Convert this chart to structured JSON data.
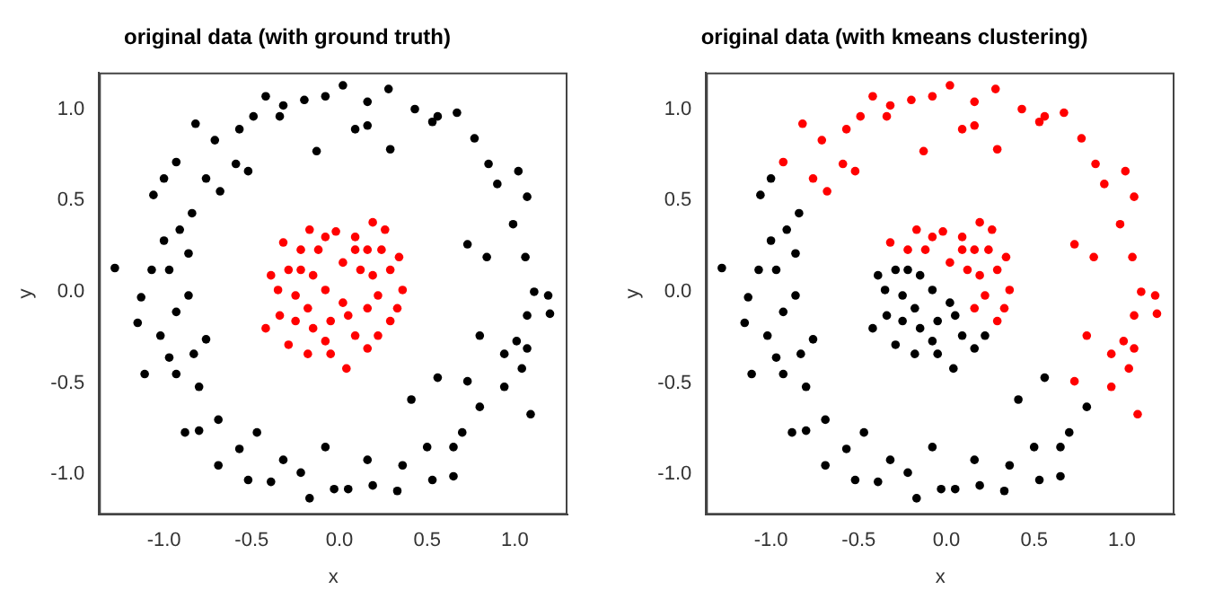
{
  "chart_data": [
    {
      "type": "scatter",
      "title": "original data (with ground truth)",
      "xlabel": "x",
      "ylabel": "y",
      "xlim": [
        -1.37,
        1.3
      ],
      "ylim": [
        -1.22,
        1.2
      ],
      "xticks": [
        {
          "value": -1,
          "label": "-1.0"
        },
        {
          "value": -0.5,
          "label": "-0.5"
        },
        {
          "value": 0,
          "label": "0.0"
        },
        {
          "value": 0.5,
          "label": "0.5"
        },
        {
          "value": 1,
          "label": "1.0"
        }
      ],
      "yticks": [
        {
          "value": -1,
          "label": "-1.0"
        },
        {
          "value": -0.5,
          "label": "-0.5"
        },
        {
          "value": 0,
          "label": "0.0"
        },
        {
          "value": 0.5,
          "label": "0.5"
        },
        {
          "value": 1,
          "label": "1.0"
        }
      ],
      "grid": false,
      "legend": false,
      "marker": "circle",
      "series": [
        {
          "color": "#000000",
          "x": [
            -1.28,
            -1.15,
            -1.11,
            -1.13,
            -1.07,
            -1.06,
            -1.0,
            -0.93,
            -0.82,
            -0.71,
            -0.76,
            -0.68,
            -0.57,
            -0.49,
            -0.42,
            -0.32,
            -0.2,
            -0.08,
            0.02,
            0.16,
            0.28,
            0.43,
            0.53,
            0.67,
            0.77,
            0.85,
            0.9,
            1.02,
            1.07,
            0.99,
            1.06,
            1.11,
            1.19,
            1.2,
            1.07,
            1.01,
            1.07,
            0.94,
            1.04,
            1.09,
            0.94,
            0.8,
            0.73,
            0.7,
            0.65,
            0.65,
            0.5,
            0.53,
            0.36,
            0.33,
            0.19,
            0.16,
            0.05,
            -0.03,
            -0.08,
            -0.17,
            -0.22,
            -0.32,
            -0.39,
            -0.52,
            -0.47,
            -0.57,
            -0.69,
            -0.69,
            -0.8,
            -0.88,
            -0.8,
            -0.93,
            -0.97,
            -0.83,
            -0.76,
            -1.02,
            -0.93,
            -0.86,
            -0.97,
            -0.86,
            -0.91,
            -0.84,
            -1.0,
            -0.52,
            -0.59,
            0.29,
            -0.13,
            0.09,
            -0.34,
            0.16,
            0.56,
            0.73,
            0.84,
            0.8,
            0.56,
            0.41
          ],
          "values": [
            0.13,
            -0.17,
            -0.45,
            -0.03,
            0.12,
            0.53,
            0.62,
            0.71,
            0.92,
            0.83,
            0.62,
            0.55,
            0.89,
            0.96,
            1.07,
            1.02,
            1.05,
            1.07,
            1.13,
            1.04,
            1.11,
            1.0,
            0.93,
            0.98,
            0.84,
            0.7,
            0.59,
            0.66,
            0.52,
            0.37,
            0.19,
            0,
            -0.02,
            -0.12,
            -0.13,
            -0.27,
            -0.31,
            -0.34,
            -0.42,
            -0.67,
            -0.52,
            -0.63,
            -0.49,
            -0.77,
            -0.85,
            -1.01,
            -0.85,
            -1.03,
            -0.95,
            -1.09,
            -1.06,
            -0.92,
            -1.08,
            -1.08,
            -0.85,
            -1.13,
            -0.99,
            -0.92,
            -1.04,
            -1.03,
            -0.77,
            -0.86,
            -0.95,
            -0.7,
            -0.76,
            -0.77,
            -0.52,
            -0.45,
            -0.36,
            -0.34,
            -0.26,
            -0.24,
            -0.11,
            -0.02,
            0.12,
            0.21,
            0.34,
            0.43,
            0.28,
            0.66,
            0.7,
            0.78,
            0.77,
            0.89,
            0.96,
            0.91,
            0.96,
            0.26,
            0.19,
            -0.24,
            -0.47,
            -0.59
          ]
        },
        {
          "color": "#ff0000",
          "x": [
            -0.42,
            -0.39,
            -0.32,
            -0.22,
            -0.17,
            -0.08,
            -0.02,
            0.09,
            0.19,
            0.26,
            0.34,
            0.36,
            0.29,
            0.22,
            0.16,
            0.04,
            -0.05,
            -0.18,
            -0.29,
            -0.34,
            -0.35,
            -0.25,
            -0.15,
            -0.08,
            0.02,
            0.12,
            0.19,
            0.22,
            0.16,
            0.05,
            -0.05,
            -0.15,
            -0.25,
            -0.22,
            -0.12,
            0.09,
            0.29,
            0.33,
            0.09,
            -0.08,
            -0.29,
            0.02,
            0.16,
            -0.18,
            0.24
          ],
          "values": [
            -0.2,
            0.09,
            0.27,
            0.23,
            0.34,
            0.3,
            0.33,
            0.3,
            0.38,
            0.34,
            0.19,
            0.01,
            -0.16,
            -0.24,
            -0.31,
            -0.42,
            -0.34,
            -0.34,
            -0.29,
            -0.13,
            0.01,
            -0.02,
            0.09,
            0.01,
            0.16,
            0.12,
            0.09,
            -0.02,
            -0.09,
            -0.13,
            -0.16,
            -0.2,
            -0.16,
            0.12,
            0.23,
            0.23,
            0.12,
            -0.09,
            -0.24,
            -0.27,
            0.12,
            -0.06,
            0.23,
            -0.09,
            0.23
          ]
        }
      ]
    },
    {
      "type": "scatter",
      "title": "original data (with kmeans clustering)",
      "xlabel": "x",
      "ylabel": "y",
      "xlim": [
        -1.37,
        1.3
      ],
      "ylim": [
        -1.22,
        1.2
      ],
      "xticks": [
        {
          "value": -1,
          "label": "-1.0"
        },
        {
          "value": -0.5,
          "label": "-0.5"
        },
        {
          "value": 0,
          "label": "0.0"
        },
        {
          "value": 0.5,
          "label": "0.5"
        },
        {
          "value": 1,
          "label": "1.0"
        }
      ],
      "yticks": [
        {
          "value": -1,
          "label": "-1.0"
        },
        {
          "value": -0.5,
          "label": "-0.5"
        },
        {
          "value": 0,
          "label": "0.0"
        },
        {
          "value": 0.5,
          "label": "0.5"
        },
        {
          "value": 1,
          "label": "1.0"
        }
      ],
      "grid": false,
      "legend": false,
      "marker": "circle",
      "series": [
        {
          "color": "#000000",
          "x": [
            -1.28,
            -1.15,
            -1.11,
            -1.13,
            -1.07,
            -1.06,
            -1.0,
            0.8,
            0.7,
            0.65,
            0.65,
            0.5,
            0.53,
            0.36,
            0.33,
            0.19,
            0.16,
            0.05,
            -0.03,
            -0.08,
            -0.17,
            -0.22,
            -0.32,
            -0.39,
            -0.52,
            -0.47,
            -0.57,
            -0.69,
            -0.69,
            -0.8,
            -0.88,
            -0.8,
            -0.93,
            -0.97,
            -0.83,
            -0.76,
            -1.02,
            -0.93,
            -0.86,
            -0.97,
            -0.86,
            -0.91,
            -0.84,
            -1.0,
            0.56,
            0.41,
            -0.42,
            -0.39,
            0.22,
            0.16,
            0.04,
            -0.05,
            -0.18,
            -0.29,
            -0.34,
            -0.35,
            -0.25,
            -0.15,
            -0.08,
            0.05,
            -0.05,
            -0.15,
            -0.25,
            -0.22,
            0.09,
            -0.08,
            -0.29,
            0.02,
            -0.18
          ],
          "values": [
            0.13,
            -0.17,
            -0.45,
            -0.03,
            0.12,
            0.53,
            0.62,
            -0.63,
            -0.77,
            -0.85,
            -1.01,
            -0.85,
            -1.03,
            -0.95,
            -1.09,
            -1.06,
            -0.92,
            -1.08,
            -1.08,
            -0.85,
            -1.13,
            -0.99,
            -0.92,
            -1.04,
            -1.03,
            -0.77,
            -0.86,
            -0.95,
            -0.7,
            -0.76,
            -0.77,
            -0.52,
            -0.45,
            -0.36,
            -0.34,
            -0.26,
            -0.24,
            -0.11,
            -0.02,
            0.12,
            0.21,
            0.34,
            0.43,
            0.28,
            -0.47,
            -0.59,
            -0.2,
            0.09,
            -0.24,
            -0.31,
            -0.42,
            -0.34,
            -0.34,
            -0.29,
            -0.13,
            0.01,
            -0.02,
            0.09,
            0.01,
            -0.13,
            -0.16,
            -0.2,
            -0.16,
            0.12,
            -0.24,
            -0.27,
            0.12,
            -0.06,
            -0.09
          ]
        },
        {
          "color": "#ff0000",
          "x": [
            -0.93,
            -0.82,
            -0.71,
            -0.76,
            -0.68,
            -0.57,
            -0.49,
            -0.42,
            -0.32,
            -0.2,
            -0.08,
            0.02,
            0.16,
            0.28,
            0.43,
            0.53,
            0.67,
            0.77,
            0.85,
            0.9,
            1.02,
            1.07,
            0.99,
            1.06,
            1.11,
            1.19,
            1.2,
            1.07,
            1.01,
            1.07,
            0.94,
            1.04,
            1.09,
            0.94,
            0.73,
            -0.52,
            -0.59,
            0.29,
            -0.13,
            0.09,
            -0.34,
            0.16,
            0.56,
            0.73,
            0.84,
            0.8,
            -0.32,
            -0.22,
            -0.17,
            -0.08,
            -0.02,
            0.09,
            0.19,
            0.26,
            0.34,
            0.36,
            0.29,
            0.02,
            0.12,
            0.19,
            0.22,
            0.16,
            -0.12,
            0.09,
            0.29,
            0.33,
            0.16,
            0.24
          ],
          "values": [
            0.71,
            0.92,
            0.83,
            0.62,
            0.55,
            0.89,
            0.96,
            1.07,
            1.02,
            1.05,
            1.07,
            1.13,
            1.04,
            1.11,
            1.0,
            0.93,
            0.98,
            0.84,
            0.7,
            0.59,
            0.66,
            0.52,
            0.37,
            0.19,
            0,
            -0.02,
            -0.12,
            -0.13,
            -0.27,
            -0.31,
            -0.34,
            -0.42,
            -0.67,
            -0.52,
            -0.49,
            0.66,
            0.7,
            0.78,
            0.77,
            0.89,
            0.96,
            0.91,
            0.96,
            0.26,
            0.19,
            -0.24,
            0.27,
            0.23,
            0.34,
            0.3,
            0.33,
            0.3,
            0.38,
            0.34,
            0.19,
            0.01,
            -0.16,
            0.16,
            0.12,
            0.09,
            -0.02,
            -0.09,
            0.23,
            0.23,
            0.12,
            -0.09,
            0.23,
            0.23
          ]
        }
      ]
    }
  ]
}
